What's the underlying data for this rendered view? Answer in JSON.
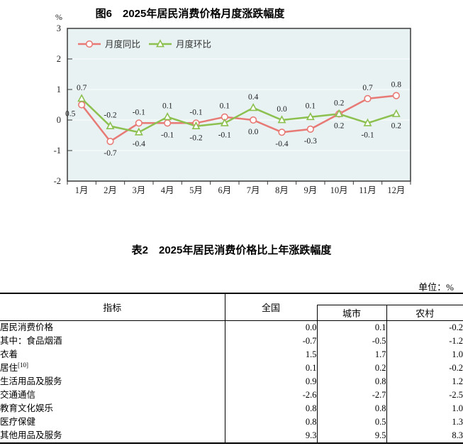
{
  "figure": {
    "title": "图6　2025年居民消费价格月度涨跌幅度"
  },
  "chart_data": {
    "type": "line",
    "title": "图6　2025年居民消费价格月度涨跌幅度",
    "categories": [
      "1月",
      "2月",
      "3月",
      "4月",
      "5月",
      "6月",
      "7月",
      "8月",
      "9月",
      "10月",
      "11月",
      "12月"
    ],
    "series": [
      {
        "name": "月度同比",
        "marker": "circle",
        "color": "#e87a76",
        "values": [
          0.5,
          -0.7,
          -0.1,
          -0.1,
          -0.1,
          0.1,
          0.0,
          -0.4,
          -0.3,
          0.2,
          0.7,
          0.8
        ]
      },
      {
        "name": "月度环比",
        "marker": "triangle",
        "color": "#8cc04f",
        "values": [
          0.7,
          -0.2,
          -0.4,
          0.1,
          -0.2,
          -0.1,
          0.4,
          0.0,
          0.1,
          0.2,
          -0.1,
          0.2
        ]
      }
    ],
    "xlabel": "",
    "ylabel": "%",
    "ylim": [
      -2,
      3
    ],
    "yticks": [
      -2,
      -1,
      0,
      1,
      2,
      3
    ],
    "grid": true,
    "legend_position": "top-left-inside",
    "data_labels": true,
    "plot_bg": "#e8f2f3",
    "grid_color": "#fbfdfd",
    "axis_color": "#3a3a3a",
    "label_color": "#1f1f1f"
  },
  "table": {
    "title": "表2　2025年居民消费价格比上年涨跌幅度",
    "unit_label": "单位：%",
    "headers": {
      "indicator": "指标",
      "national": "全国",
      "urban": "城市",
      "rural": "农村"
    },
    "rows": [
      {
        "label": "居民消费价格",
        "sup": "",
        "indent": 0,
        "national": "0.0",
        "urban": "0.1",
        "rural": "-0.2"
      },
      {
        "label": "其中：食品烟酒",
        "sup": "",
        "indent": 1,
        "national": "-0.7",
        "urban": "-0.5",
        "rural": "-1.2"
      },
      {
        "label": "衣着",
        "sup": "",
        "indent": 2,
        "national": "1.5",
        "urban": "1.7",
        "rural": "1.0"
      },
      {
        "label": "居住",
        "sup": "[10]",
        "indent": 2,
        "national": "0.1",
        "urban": "0.2",
        "rural": "-0.2"
      },
      {
        "label": "生活用品及服务",
        "sup": "",
        "indent": 2,
        "national": "0.9",
        "urban": "0.8",
        "rural": "1.2"
      },
      {
        "label": "交通通信",
        "sup": "",
        "indent": 2,
        "national": "-2.6",
        "urban": "-2.7",
        "rural": "-2.5"
      },
      {
        "label": "教育文化娱乐",
        "sup": "",
        "indent": 2,
        "national": "0.8",
        "urban": "0.8",
        "rural": "1.0"
      },
      {
        "label": "医疗保健",
        "sup": "",
        "indent": 2,
        "national": "0.8",
        "urban": "0.5",
        "rural": "1.3"
      },
      {
        "label": "其他用品及服务",
        "sup": "",
        "indent": 2,
        "national": "9.3",
        "urban": "9.5",
        "rural": "8.3"
      }
    ]
  }
}
